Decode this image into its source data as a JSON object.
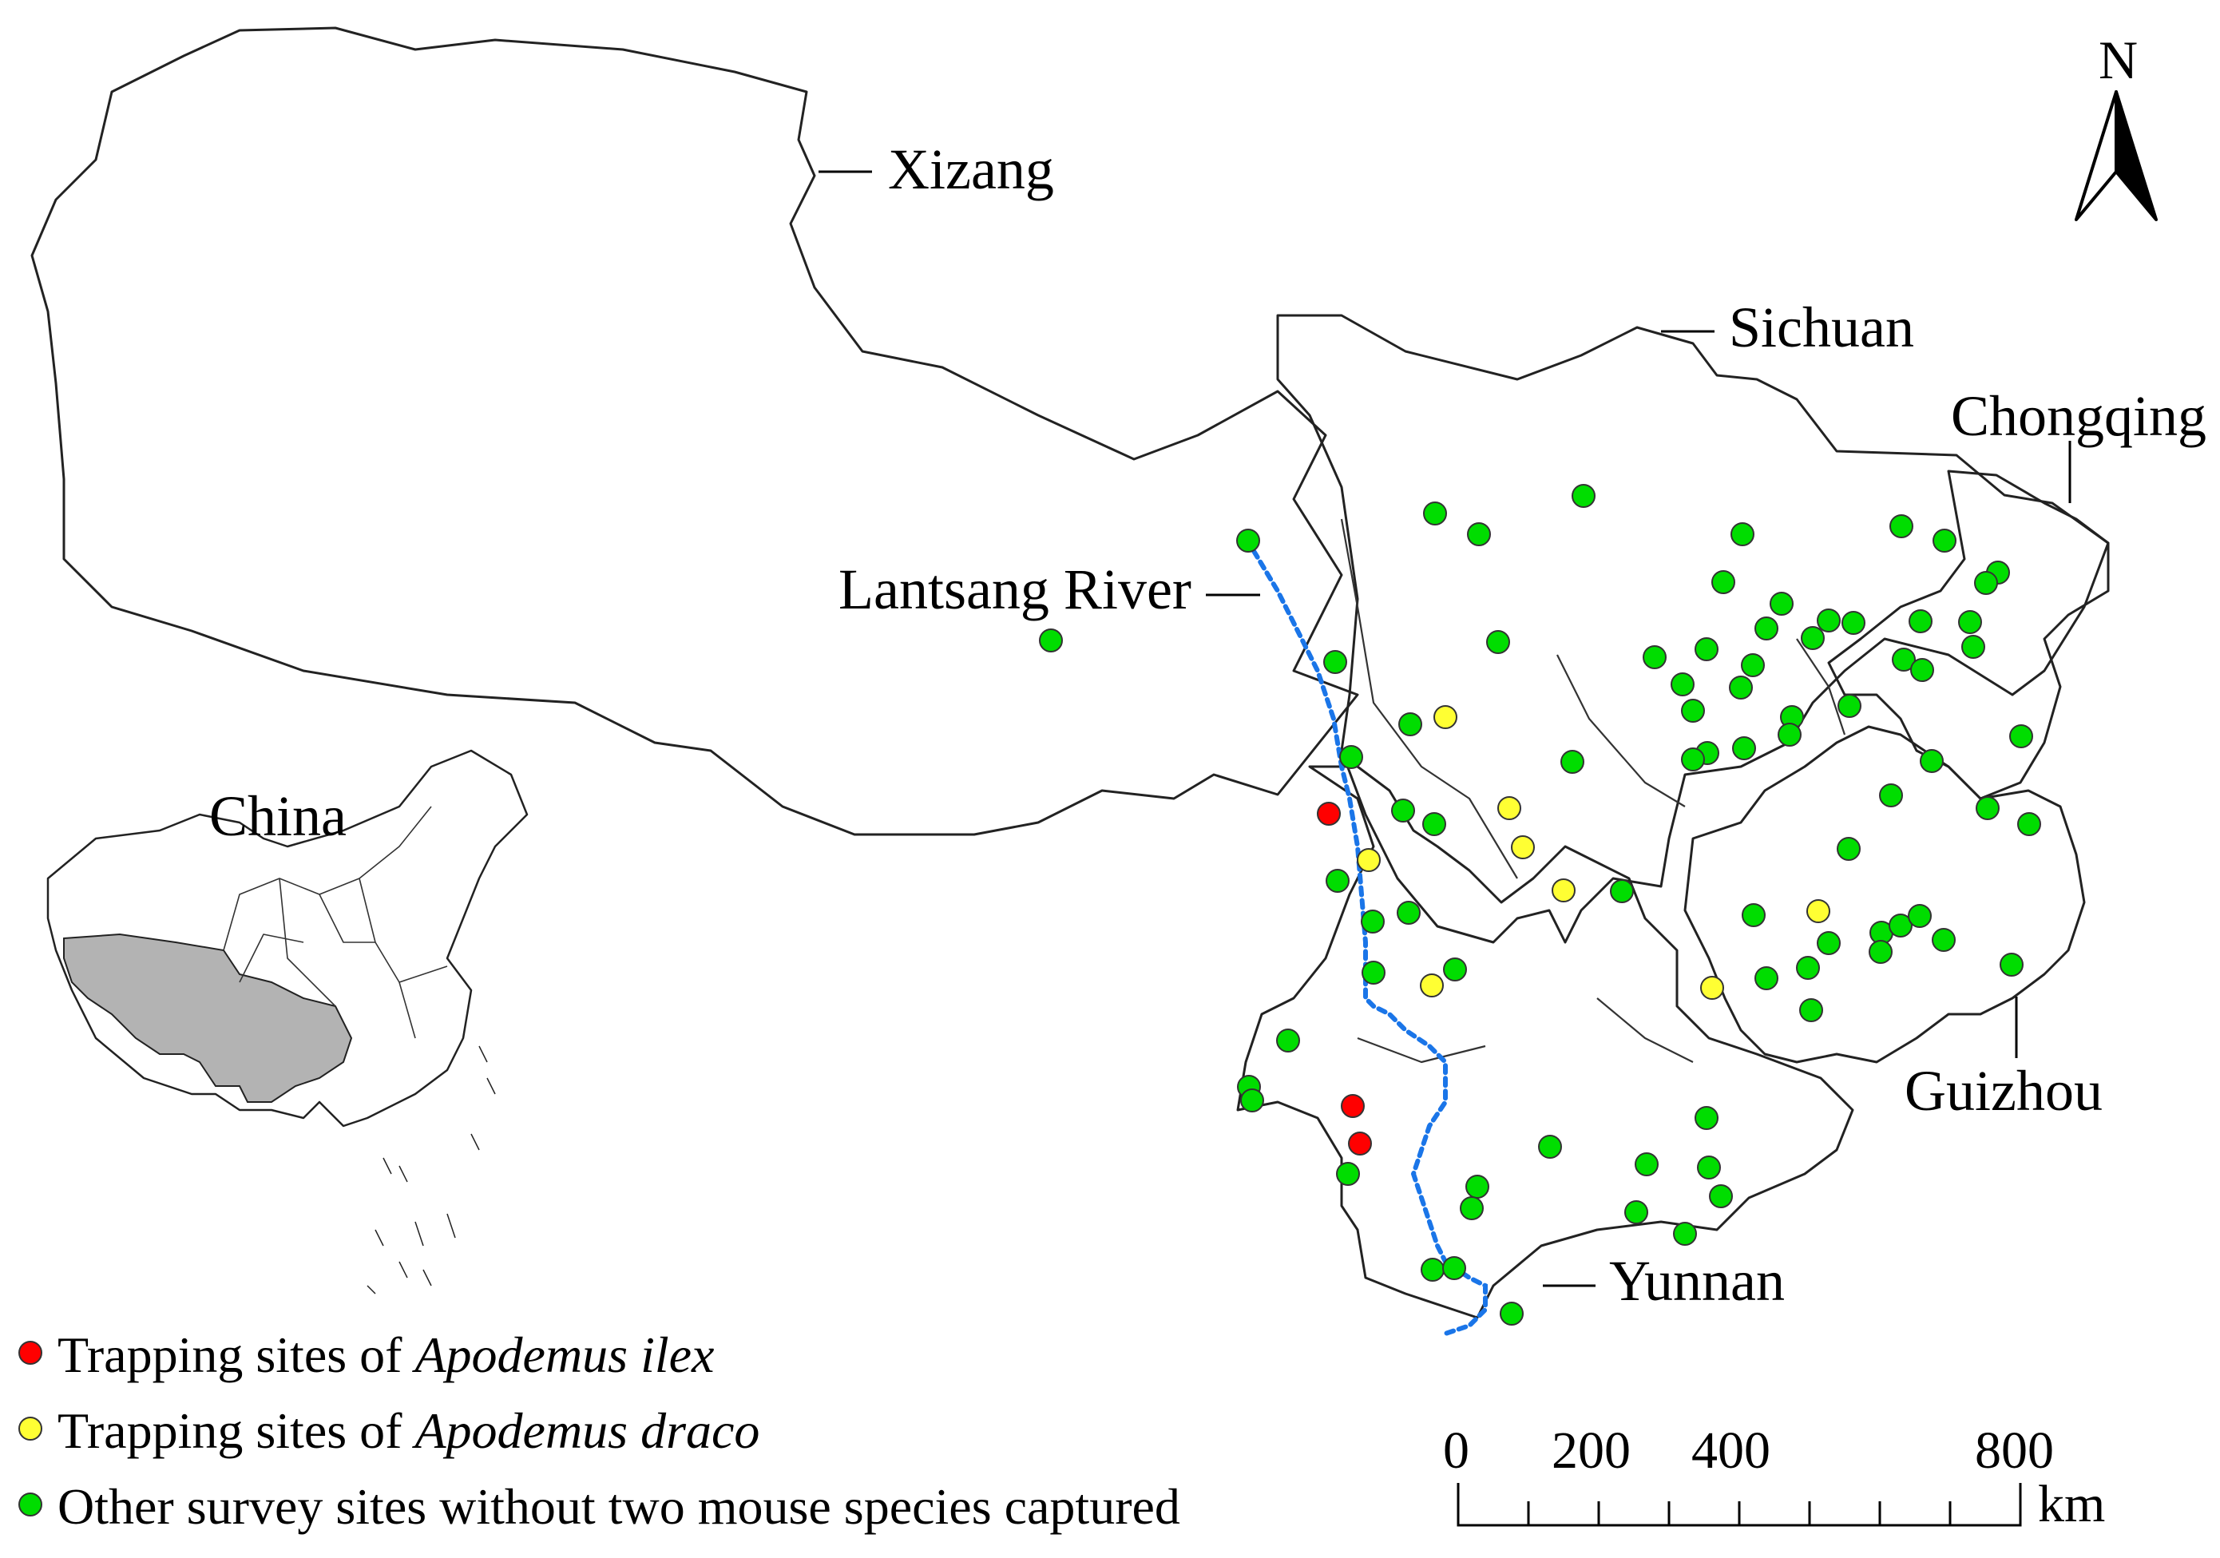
{
  "labels": {
    "xizang": "Xizang",
    "sichuan": "Sichuan",
    "chongqing": "Chongqing",
    "lantsang": "Lantsang River",
    "guizhou": "Guizhou",
    "yunnan": "Yunnan",
    "china": "China",
    "north": "N"
  },
  "legend": {
    "ilex": {
      "prefix": "Trapping sites of ",
      "species": "Apodemus ilex",
      "color": "#ff0000"
    },
    "draco": {
      "prefix": "Trapping sites of ",
      "species": "Apodemus draco",
      "color": "#ffff33"
    },
    "other": {
      "text": "Other survey sites without two mouse species captured",
      "color": "#00dd00"
    }
  },
  "scale_bar": {
    "ticks": [
      "0",
      "200",
      "400",
      "800"
    ],
    "unit": "km"
  },
  "colors": {
    "river": "#1a75e8",
    "highlight_region": "#b3b3b3",
    "site_outline": "#333333"
  }
}
